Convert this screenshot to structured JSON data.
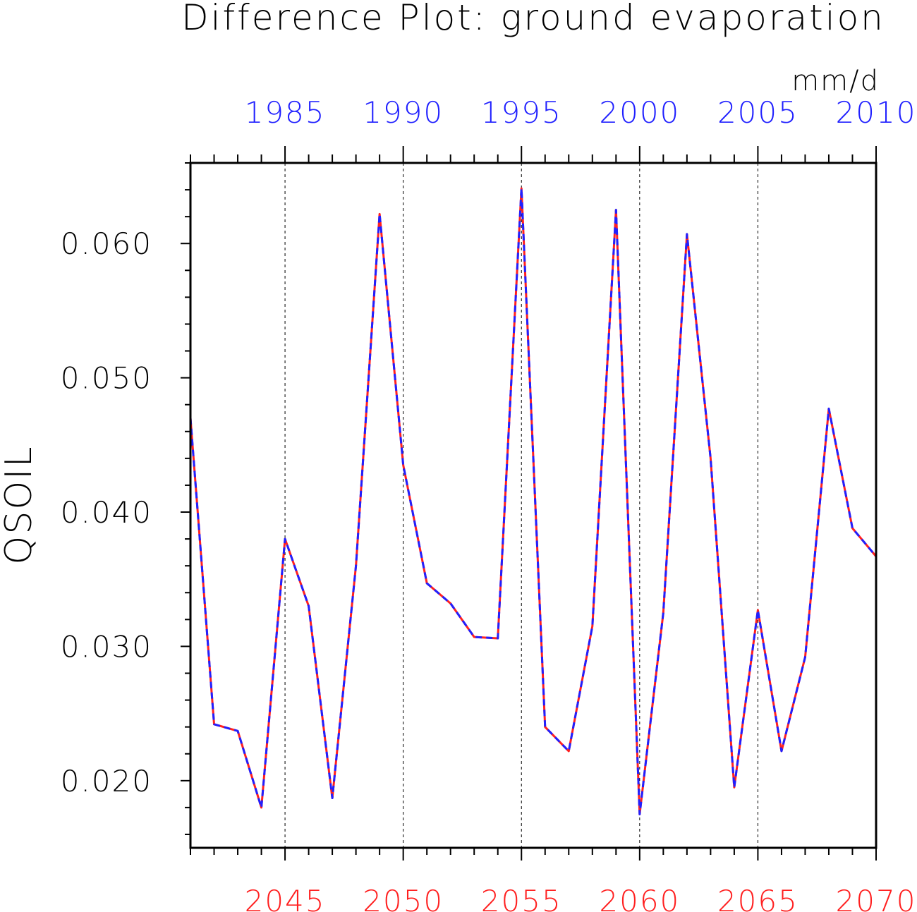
{
  "chart_data": {
    "type": "line",
    "title": "Difference Plot: ground evaporation",
    "units": "mm/d",
    "ylabel": "QSOIL",
    "ylim": [
      0.015,
      0.066
    ],
    "yticks_labeled": [
      "0.020",
      "0.030",
      "0.040",
      "0.050",
      "0.060"
    ],
    "yticks_labeled_values": [
      0.02,
      0.03,
      0.04,
      0.05,
      0.06
    ],
    "ytick_minor_step": 0.002,
    "bottom_axis": {
      "color": "#ff2020",
      "range": [
        2041,
        2070
      ],
      "tick_labels": [
        "2045",
        "2050",
        "2055",
        "2060",
        "2065",
        "2070"
      ],
      "tick_values": [
        2045,
        2050,
        2055,
        2060,
        2065,
        2070
      ]
    },
    "top_axis": {
      "color": "#2020ff",
      "range": [
        1981,
        2010
      ],
      "tick_labels": [
        "1985",
        "1990",
        "1995",
        "2000",
        "2005",
        "2010"
      ],
      "tick_values": [
        1985,
        1990,
        1995,
        2000,
        2005,
        2010
      ]
    },
    "vertical_gridlines_at": [
      2045,
      2050,
      2055,
      2060,
      2065
    ],
    "x": [
      2041,
      2042,
      2043,
      2044,
      2045,
      2046,
      2047,
      2048,
      2049,
      2050,
      2051,
      2052,
      2053,
      2054,
      2055,
      2056,
      2057,
      2058,
      2059,
      2060,
      2061,
      2062,
      2063,
      2064,
      2065,
      2066,
      2067,
      2068,
      2069,
      2070
    ],
    "series": [
      {
        "color": "#ff2020",
        "style": "solid",
        "axis": "bottom",
        "values": [
          0.047,
          0.0242,
          0.0237,
          0.018,
          0.038,
          0.033,
          0.0187,
          0.036,
          0.0622,
          0.0435,
          0.0347,
          0.0332,
          0.0307,
          0.0306,
          0.0641,
          0.024,
          0.0222,
          0.0315,
          0.0625,
          0.0175,
          0.0325,
          0.0607,
          0.044,
          0.0195,
          0.0327,
          0.0222,
          0.0292,
          0.0477,
          0.0388,
          0.0367
        ]
      },
      {
        "color": "#2020ff",
        "style": "dashed",
        "axis": "top",
        "values": [
          0.047,
          0.0242,
          0.0237,
          0.018,
          0.038,
          0.033,
          0.0187,
          0.036,
          0.0622,
          0.0435,
          0.0347,
          0.0332,
          0.0307,
          0.0306,
          0.0641,
          0.024,
          0.0222,
          0.0315,
          0.0625,
          0.0175,
          0.0325,
          0.0607,
          0.044,
          0.0195,
          0.0327,
          0.0222,
          0.0292,
          0.0477,
          0.0388,
          0.0367
        ]
      }
    ]
  }
}
